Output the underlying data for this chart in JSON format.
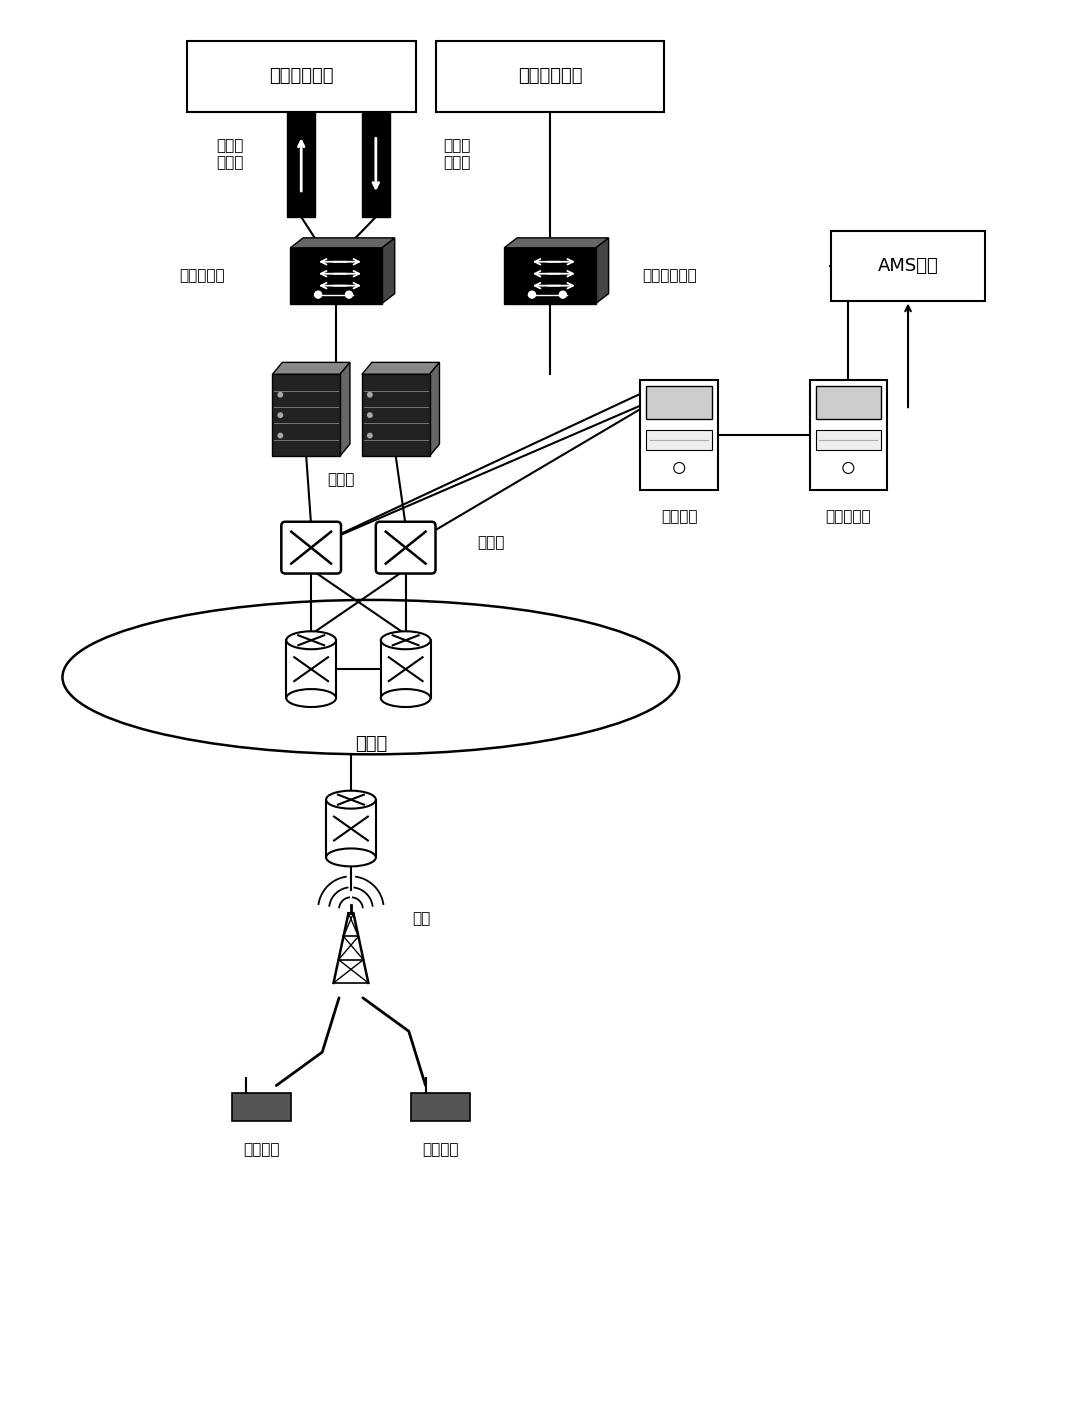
{
  "bg_color": "#ffffff",
  "labels": {
    "production": "生产控制大区",
    "management": "管理信息大区",
    "forward_isolation": "正向隔\n离装置",
    "reverse_isolation": "反向隔\n离装置",
    "safe_access_zone": "安全接入区",
    "safe_access_platform": "安全接入平台",
    "ams": "AMS系统",
    "core_net": "核心网",
    "net_mgmt": "网管设备",
    "interface_server": "接口服务器",
    "switch": "交换机",
    "transport_net": "传输网",
    "base_station": "基站",
    "terminal1": "业务终端",
    "terminal2": "业务终端"
  },
  "font_size": 13,
  "small_font": 11
}
